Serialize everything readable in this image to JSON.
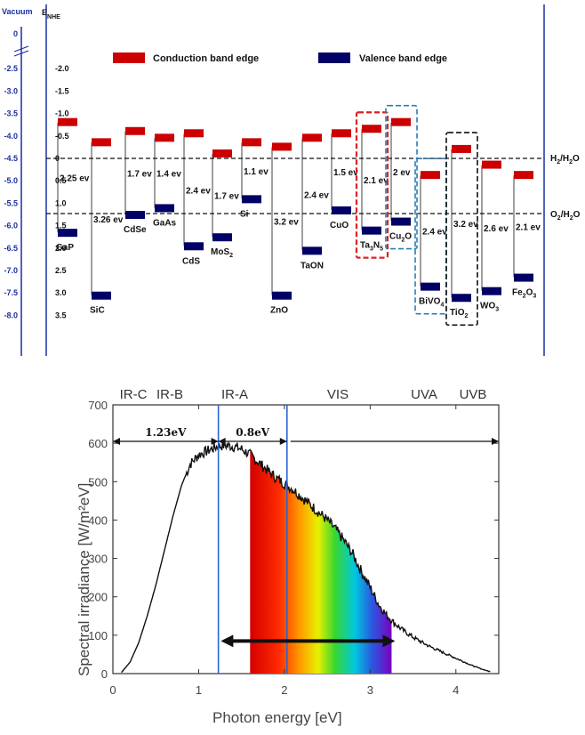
{
  "chart_data": [
    {
      "type": "bar",
      "axes": {
        "vacuum_label": "Vacuum",
        "nhe_label": "E",
        "nhe_sub": "NHE",
        "vacuum_ticks": [
          "0",
          "-2.5",
          "-3.0",
          "-3.5",
          "-4.0",
          "-4.5",
          "-5.0",
          "-5.5",
          "-6.0",
          "-6.5",
          "-7.0",
          "-7.5",
          "-8.0"
        ],
        "nhe_ticks": [
          "-2.0",
          "-1.5",
          "-1.0",
          "-0.5",
          "0",
          "0.5",
          "1.0",
          "1.5",
          "2.0",
          "2.5",
          "3.0",
          "3.5"
        ],
        "ylim_nhe": [
          -2.2,
          3.9
        ]
      },
      "legend": {
        "position": "top",
        "cb_label": "Conduction band edge",
        "vb_label": "Valence band edge",
        "cb_color": "#cc0000",
        "vb_color": "#000066"
      },
      "reference_lines": [
        {
          "label": "H",
          "sub1": "2",
          "mid": "/H",
          "sub2": "2",
          "tail": "O",
          "value": 0.0
        },
        {
          "label": "O",
          "sub1": "2",
          "mid": "/H",
          "sub2": "2",
          "tail": "O",
          "value": 1.23
        }
      ],
      "materials": [
        {
          "name": "GaP",
          "sub": "",
          "tail": "",
          "cb": -0.8,
          "vb": 1.65,
          "gap": "2.25 ev"
        },
        {
          "name": "SiC",
          "sub": "",
          "tail": "",
          "cb": -0.35,
          "vb": 3.05,
          "gap": "3.26 ev"
        },
        {
          "name": "CdSe",
          "sub": "",
          "tail": "",
          "cb": -0.6,
          "vb": 1.25,
          "gap": "1.7 ev"
        },
        {
          "name": "GaAs",
          "sub": "",
          "tail": "",
          "cb": -0.45,
          "vb": 1.1,
          "gap": "1.4 ev"
        },
        {
          "name": "CdS",
          "sub": "",
          "tail": "",
          "cb": -0.55,
          "vb": 1.95,
          "gap": "2.4 ev"
        },
        {
          "name": "MoS",
          "sub": "2",
          "tail": "",
          "cb": -0.1,
          "vb": 1.75,
          "gap": "1.7 ev"
        },
        {
          "name": "Si",
          "sub": "",
          "tail": "",
          "cb": -0.35,
          "vb": 0.9,
          "gap": "1.1 ev"
        },
        {
          "name": "ZnO",
          "sub": "",
          "tail": "",
          "cb": -0.25,
          "vb": 3.05,
          "gap": "3.2 ev"
        },
        {
          "name": "TaON",
          "sub": "",
          "tail": "",
          "cb": -0.45,
          "vb": 2.05,
          "gap": "2.4 ev"
        },
        {
          "name": "CuO",
          "sub": "",
          "tail": "",
          "cb": -0.55,
          "vb": 1.15,
          "gap": "1.5 ev"
        },
        {
          "name": "Ta",
          "sub": "3",
          "tail": "N",
          "tail_sub": "5",
          "cb": -0.65,
          "vb": 1.6,
          "gap": "2.1 ev"
        },
        {
          "name": "Cu",
          "sub": "2",
          "tail": "O",
          "tail_sub": "",
          "cb": -0.8,
          "vb": 1.4,
          "gap": "2 ev"
        },
        {
          "name": "BiVO",
          "sub": "4",
          "tail": "",
          "cb": 0.38,
          "vb": 2.85,
          "gap": "2.4 ev"
        },
        {
          "name": "TiO",
          "sub": "2",
          "tail": "",
          "cb": -0.2,
          "vb": 3.1,
          "gap": "3.2 ev"
        },
        {
          "name": "WO",
          "sub": "3",
          "tail": "",
          "cb": 0.15,
          "vb": 2.95,
          "gap": "2.6 ev"
        },
        {
          "name": "Fe",
          "sub": "2",
          "tail": "O",
          "tail_sub": "3",
          "cb": 0.38,
          "vb": 2.65,
          "gap": "2.1 ev"
        }
      ],
      "highlight_boxes": [
        {
          "target": "Ta3N5",
          "color": "#e02020"
        },
        {
          "target": "Cu2O",
          "color": "#2a7fb0"
        },
        {
          "target": "BiVO4",
          "color": "#2a7fb0"
        },
        {
          "target": "TiO2",
          "color": "#111111"
        }
      ]
    },
    {
      "type": "line",
      "xlabel": "Photon energy  [eV]",
      "ylabel": "Spectral irradiance  [W/m²eV]",
      "xlim": [
        0,
        4.5
      ],
      "ylim": [
        0,
        700
      ],
      "xticks": [
        "0",
        "1",
        "2",
        "3",
        "4"
      ],
      "yticks": [
        "0",
        "100",
        "200",
        "300",
        "400",
        "500",
        "600",
        "700"
      ],
      "regions": [
        "IR-C",
        "IR-B",
        "IR-A",
        "VIS",
        "UVA",
        "UVB"
      ],
      "vlines": [
        1.23,
        2.03
      ],
      "segments": [
        {
          "label": "1.23eV",
          "from": 0.0,
          "to": 1.23
        },
        {
          "label": "0.8eV",
          "from": 1.23,
          "to": 2.03
        }
      ],
      "visible_band": [
        1.6,
        3.25
      ],
      "series": [
        {
          "x": [
            0.1,
            0.2,
            0.3,
            0.4,
            0.5,
            0.6,
            0.7,
            0.8,
            0.9,
            1.0,
            1.1,
            1.2,
            1.3,
            1.4,
            1.5,
            1.6,
            1.7,
            1.8,
            1.9,
            2.0,
            2.1,
            2.2,
            2.3,
            2.4,
            2.5,
            2.6,
            2.7,
            2.8,
            2.9,
            3.0,
            3.1,
            3.2,
            3.3,
            3.4,
            3.5,
            3.6,
            3.7,
            3.8,
            3.9,
            4.0,
            4.1,
            4.2,
            4.3,
            4.4
          ],
          "y": [
            3,
            30,
            80,
            150,
            230,
            320,
            410,
            490,
            545,
            570,
            580,
            590,
            595,
            592,
            585,
            570,
            550,
            530,
            510,
            495,
            480,
            460,
            440,
            420,
            400,
            375,
            345,
            310,
            265,
            225,
            180,
            150,
            128,
            110,
            95,
            82,
            70,
            60,
            50,
            40,
            30,
            20,
            12,
            5
          ]
        }
      ]
    }
  ]
}
